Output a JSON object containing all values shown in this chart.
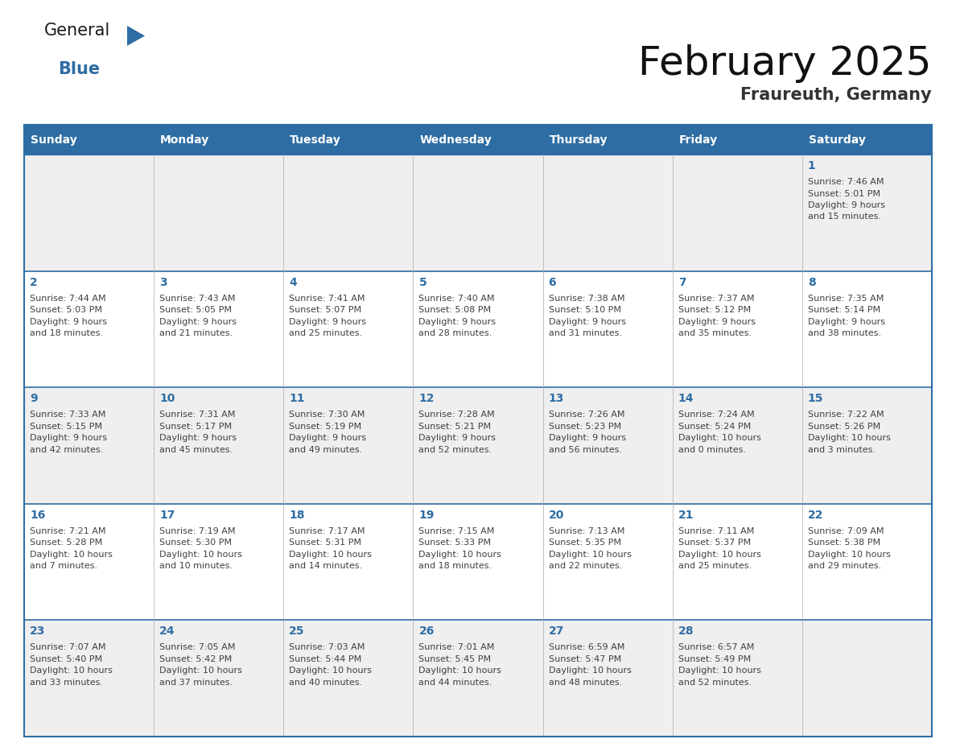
{
  "title": "February 2025",
  "subtitle": "Fraureuth, Germany",
  "header_bg": "#2E6DA4",
  "header_text_color": "#FFFFFF",
  "cell_bg_odd": "#EFEFEF",
  "cell_bg_even": "#FFFFFF",
  "day_number_color": "#2E6DA4",
  "content_text_color": "#404040",
  "border_color": "#2E6DA4",
  "grid_line_color": "#AAAAAA",
  "weekdays": [
    "Sunday",
    "Monday",
    "Tuesday",
    "Wednesday",
    "Thursday",
    "Friday",
    "Saturday"
  ],
  "days": [
    {
      "day": 1,
      "col": 6,
      "row": 0,
      "lines": [
        "Sunrise: 7:46 AM",
        "Sunset: 5:01 PM",
        "Daylight: 9 hours",
        "and 15 minutes."
      ]
    },
    {
      "day": 2,
      "col": 0,
      "row": 1,
      "lines": [
        "Sunrise: 7:44 AM",
        "Sunset: 5:03 PM",
        "Daylight: 9 hours",
        "and 18 minutes."
      ]
    },
    {
      "day": 3,
      "col": 1,
      "row": 1,
      "lines": [
        "Sunrise: 7:43 AM",
        "Sunset: 5:05 PM",
        "Daylight: 9 hours",
        "and 21 minutes."
      ]
    },
    {
      "day": 4,
      "col": 2,
      "row": 1,
      "lines": [
        "Sunrise: 7:41 AM",
        "Sunset: 5:07 PM",
        "Daylight: 9 hours",
        "and 25 minutes."
      ]
    },
    {
      "day": 5,
      "col": 3,
      "row": 1,
      "lines": [
        "Sunrise: 7:40 AM",
        "Sunset: 5:08 PM",
        "Daylight: 9 hours",
        "and 28 minutes."
      ]
    },
    {
      "day": 6,
      "col": 4,
      "row": 1,
      "lines": [
        "Sunrise: 7:38 AM",
        "Sunset: 5:10 PM",
        "Daylight: 9 hours",
        "and 31 minutes."
      ]
    },
    {
      "day": 7,
      "col": 5,
      "row": 1,
      "lines": [
        "Sunrise: 7:37 AM",
        "Sunset: 5:12 PM",
        "Daylight: 9 hours",
        "and 35 minutes."
      ]
    },
    {
      "day": 8,
      "col": 6,
      "row": 1,
      "lines": [
        "Sunrise: 7:35 AM",
        "Sunset: 5:14 PM",
        "Daylight: 9 hours",
        "and 38 minutes."
      ]
    },
    {
      "day": 9,
      "col": 0,
      "row": 2,
      "lines": [
        "Sunrise: 7:33 AM",
        "Sunset: 5:15 PM",
        "Daylight: 9 hours",
        "and 42 minutes."
      ]
    },
    {
      "day": 10,
      "col": 1,
      "row": 2,
      "lines": [
        "Sunrise: 7:31 AM",
        "Sunset: 5:17 PM",
        "Daylight: 9 hours",
        "and 45 minutes."
      ]
    },
    {
      "day": 11,
      "col": 2,
      "row": 2,
      "lines": [
        "Sunrise: 7:30 AM",
        "Sunset: 5:19 PM",
        "Daylight: 9 hours",
        "and 49 minutes."
      ]
    },
    {
      "day": 12,
      "col": 3,
      "row": 2,
      "lines": [
        "Sunrise: 7:28 AM",
        "Sunset: 5:21 PM",
        "Daylight: 9 hours",
        "and 52 minutes."
      ]
    },
    {
      "day": 13,
      "col": 4,
      "row": 2,
      "lines": [
        "Sunrise: 7:26 AM",
        "Sunset: 5:23 PM",
        "Daylight: 9 hours",
        "and 56 minutes."
      ]
    },
    {
      "day": 14,
      "col": 5,
      "row": 2,
      "lines": [
        "Sunrise: 7:24 AM",
        "Sunset: 5:24 PM",
        "Daylight: 10 hours",
        "and 0 minutes."
      ]
    },
    {
      "day": 15,
      "col": 6,
      "row": 2,
      "lines": [
        "Sunrise: 7:22 AM",
        "Sunset: 5:26 PM",
        "Daylight: 10 hours",
        "and 3 minutes."
      ]
    },
    {
      "day": 16,
      "col": 0,
      "row": 3,
      "lines": [
        "Sunrise: 7:21 AM",
        "Sunset: 5:28 PM",
        "Daylight: 10 hours",
        "and 7 minutes."
      ]
    },
    {
      "day": 17,
      "col": 1,
      "row": 3,
      "lines": [
        "Sunrise: 7:19 AM",
        "Sunset: 5:30 PM",
        "Daylight: 10 hours",
        "and 10 minutes."
      ]
    },
    {
      "day": 18,
      "col": 2,
      "row": 3,
      "lines": [
        "Sunrise: 7:17 AM",
        "Sunset: 5:31 PM",
        "Daylight: 10 hours",
        "and 14 minutes."
      ]
    },
    {
      "day": 19,
      "col": 3,
      "row": 3,
      "lines": [
        "Sunrise: 7:15 AM",
        "Sunset: 5:33 PM",
        "Daylight: 10 hours",
        "and 18 minutes."
      ]
    },
    {
      "day": 20,
      "col": 4,
      "row": 3,
      "lines": [
        "Sunrise: 7:13 AM",
        "Sunset: 5:35 PM",
        "Daylight: 10 hours",
        "and 22 minutes."
      ]
    },
    {
      "day": 21,
      "col": 5,
      "row": 3,
      "lines": [
        "Sunrise: 7:11 AM",
        "Sunset: 5:37 PM",
        "Daylight: 10 hours",
        "and 25 minutes."
      ]
    },
    {
      "day": 22,
      "col": 6,
      "row": 3,
      "lines": [
        "Sunrise: 7:09 AM",
        "Sunset: 5:38 PM",
        "Daylight: 10 hours",
        "and 29 minutes."
      ]
    },
    {
      "day": 23,
      "col": 0,
      "row": 4,
      "lines": [
        "Sunrise: 7:07 AM",
        "Sunset: 5:40 PM",
        "Daylight: 10 hours",
        "and 33 minutes."
      ]
    },
    {
      "day": 24,
      "col": 1,
      "row": 4,
      "lines": [
        "Sunrise: 7:05 AM",
        "Sunset: 5:42 PM",
        "Daylight: 10 hours",
        "and 37 minutes."
      ]
    },
    {
      "day": 25,
      "col": 2,
      "row": 4,
      "lines": [
        "Sunrise: 7:03 AM",
        "Sunset: 5:44 PM",
        "Daylight: 10 hours",
        "and 40 minutes."
      ]
    },
    {
      "day": 26,
      "col": 3,
      "row": 4,
      "lines": [
        "Sunrise: 7:01 AM",
        "Sunset: 5:45 PM",
        "Daylight: 10 hours",
        "and 44 minutes."
      ]
    },
    {
      "day": 27,
      "col": 4,
      "row": 4,
      "lines": [
        "Sunrise: 6:59 AM",
        "Sunset: 5:47 PM",
        "Daylight: 10 hours",
        "and 48 minutes."
      ]
    },
    {
      "day": 28,
      "col": 5,
      "row": 4,
      "lines": [
        "Sunrise: 6:57 AM",
        "Sunset: 5:49 PM",
        "Daylight: 10 hours",
        "and 52 minutes."
      ]
    }
  ],
  "num_rows": 5,
  "num_cols": 7,
  "logo_text_general": "General",
  "logo_text_blue": "Blue",
  "logo_color_general": "#1a1a1a",
  "logo_color_blue": "#2E6DA4",
  "logo_triangle_color": "#2E6DA4",
  "title_fontsize": 36,
  "subtitle_fontsize": 15,
  "header_fontsize": 10,
  "day_num_fontsize": 10,
  "content_fontsize": 8
}
